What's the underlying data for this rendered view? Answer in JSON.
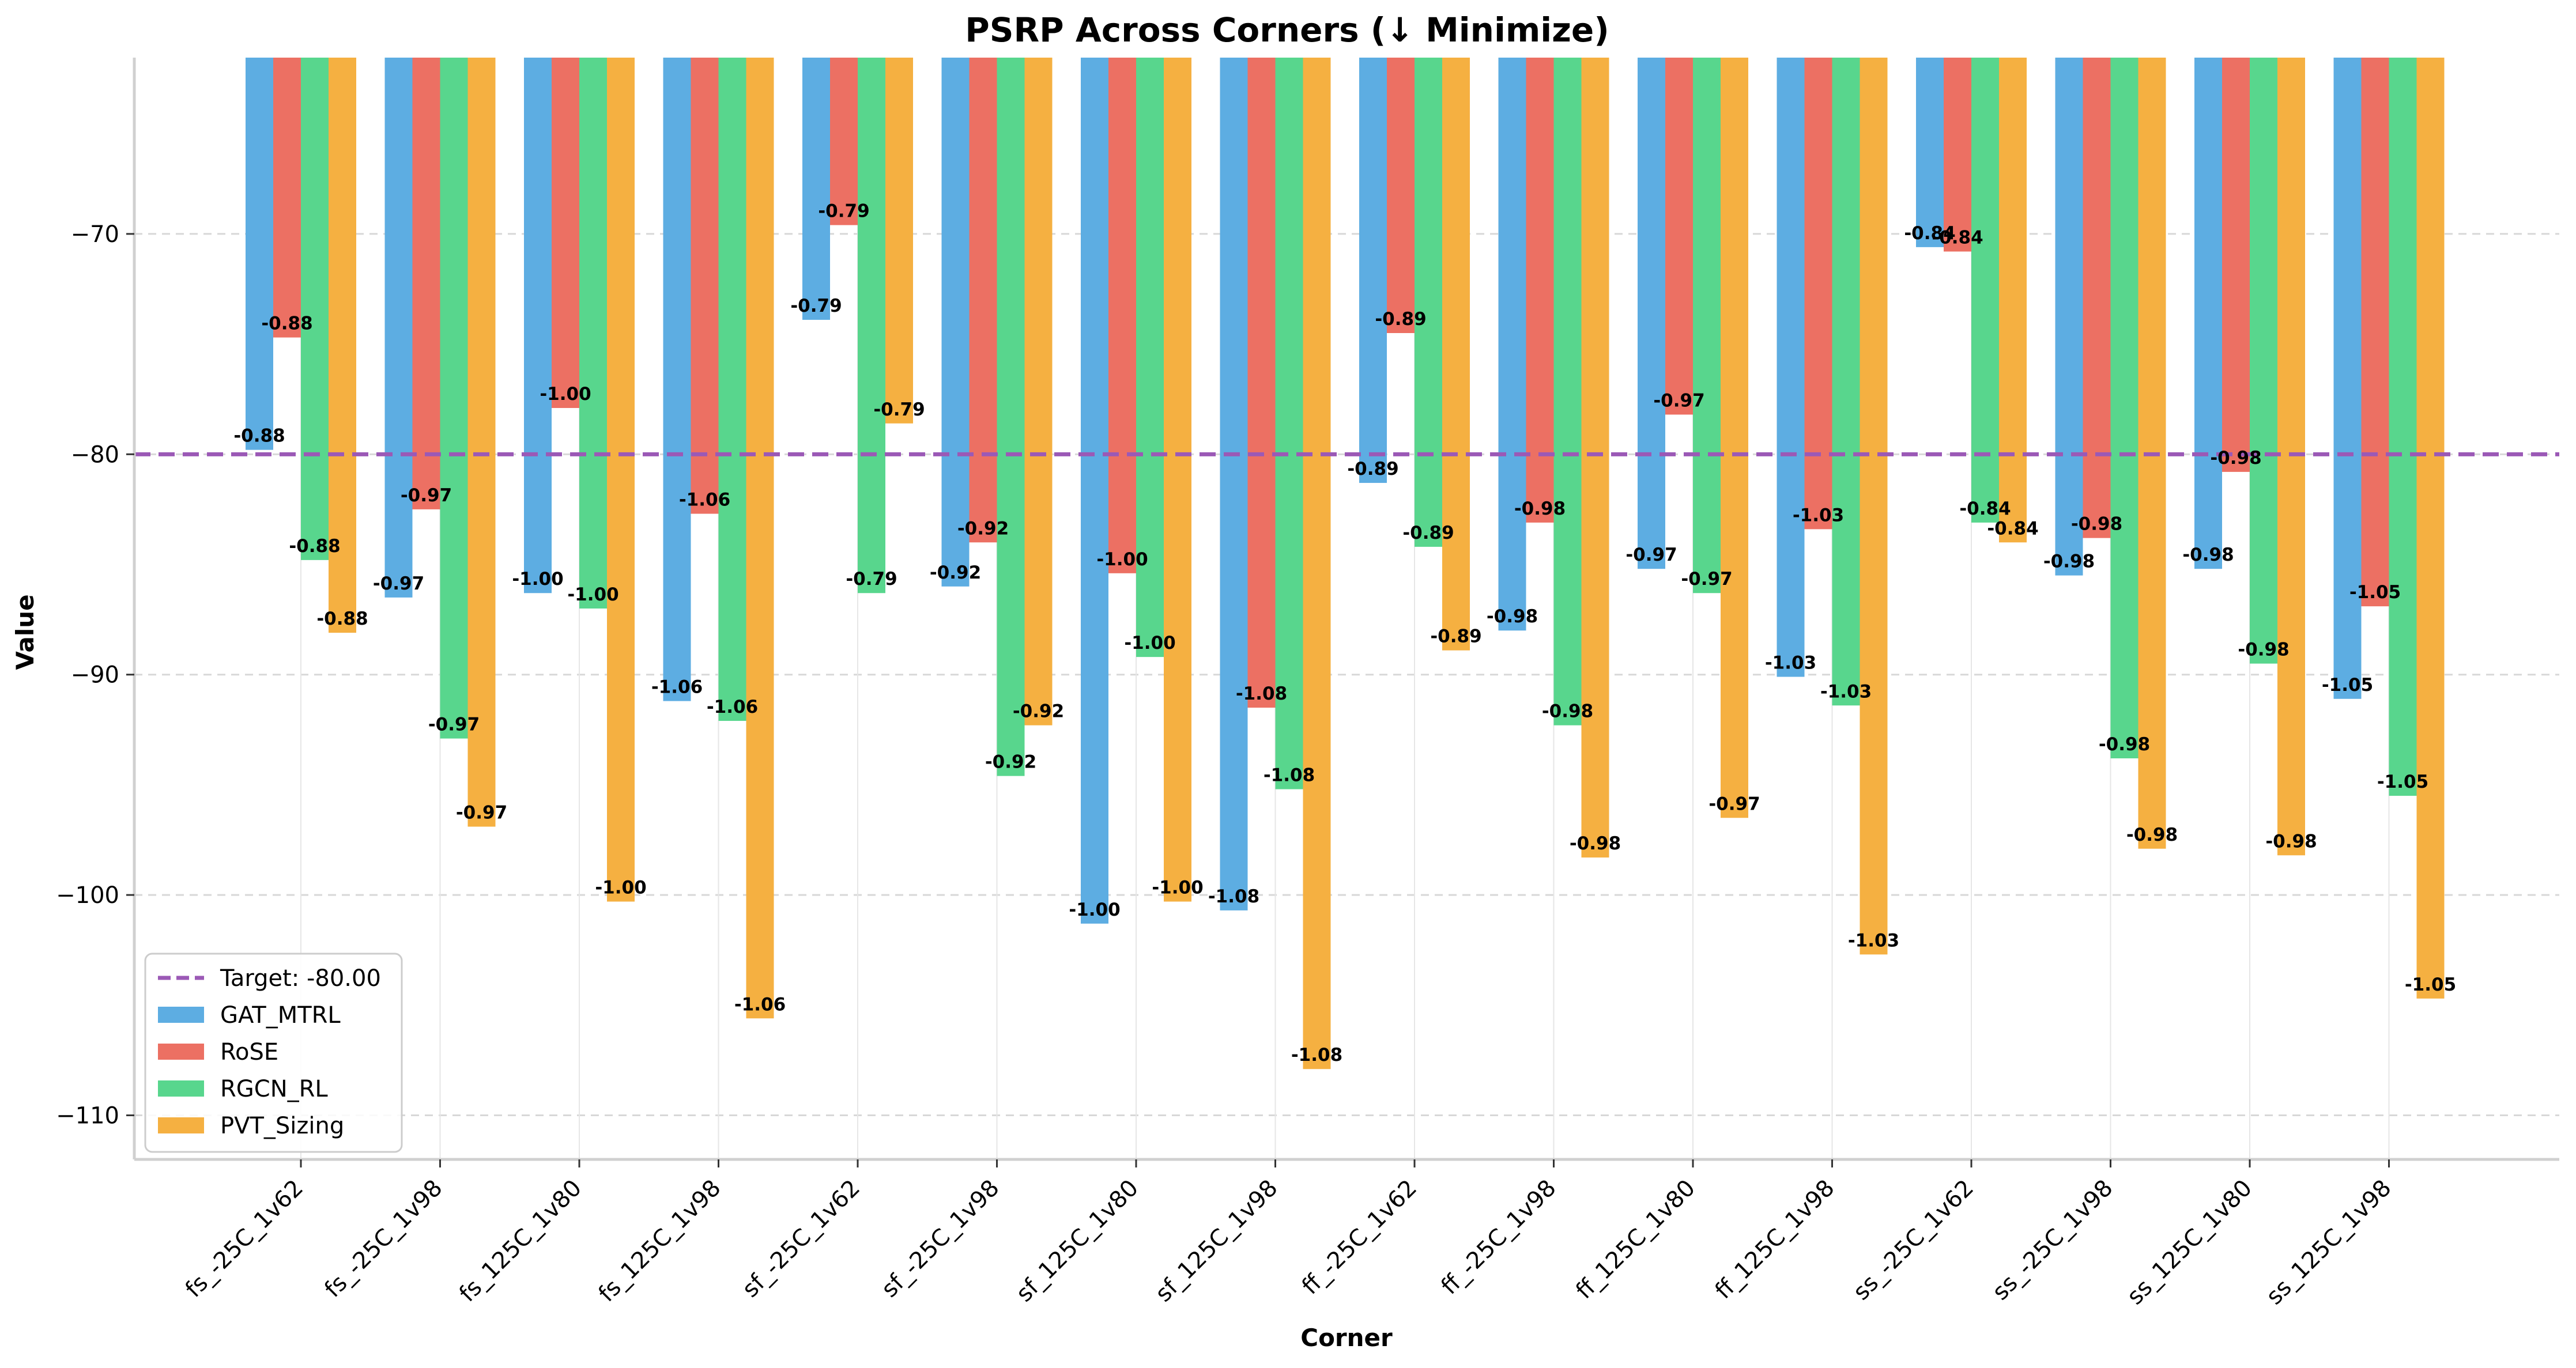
{
  "chart_data": {
    "type": "bar",
    "title": "PSRP Across Corners (↓ Minimize)",
    "xlabel": "Corner",
    "ylabel": "Value",
    "ylim": [
      -112,
      -62
    ],
    "yticks": [
      -110,
      -100,
      -90,
      -80,
      -70
    ],
    "grid": true,
    "legend_position": "lower-left",
    "categories": [
      "fs_-25C_1v62",
      "fs_-25C_1v98",
      "fs_125C_1v80",
      "fs_125C_1v98",
      "sf_-25C_1v62",
      "sf_-25C_1v98",
      "sf_125C_1v80",
      "sf_125C_1v98",
      "ff_-25C_1v62",
      "ff_-25C_1v98",
      "ff_125C_1v80",
      "ff_125C_1v98",
      "ss_-25C_1v62",
      "ss_-25C_1v98",
      "ss_125C_1v80",
      "ss_125C_1v98"
    ],
    "target": {
      "label": "Target: -80.00",
      "value": -80,
      "color": "#9b59b6"
    },
    "series": [
      {
        "name": "GAT_MTRL",
        "color": "#5dade2",
        "values": [
          -79.8,
          -86.5,
          -86.3,
          -91.2,
          -73.9,
          -86.0,
          -101.3,
          -100.7,
          -81.3,
          -88.0,
          -85.2,
          -90.1,
          -70.6,
          -85.5,
          -85.2,
          -91.1
        ],
        "labels": [
          "-0.88",
          "-0.97",
          "-1.00",
          "-1.06",
          "-0.79",
          "-0.92",
          "-1.00",
          "-1.08",
          "-0.89",
          "-0.98",
          "-0.97",
          "-1.03",
          "-0.84",
          "-0.98",
          "-0.98",
          "-1.05"
        ]
      },
      {
        "name": "RoSE",
        "color": "#ec7063",
        "values": [
          -74.7,
          -82.5,
          -77.9,
          -82.7,
          -69.6,
          -84.0,
          -85.4,
          -91.5,
          -74.5,
          -83.1,
          -78.2,
          -83.4,
          -70.8,
          -83.8,
          -80.8,
          -86.9
        ],
        "labels": [
          "-0.88",
          "-0.97",
          "-1.00",
          "-1.06",
          "-0.79",
          "-0.92",
          "-1.00",
          "-1.08",
          "-0.89",
          "-0.98",
          "-0.97",
          "-1.03",
          "-0.84",
          "-0.98",
          "-0.98",
          "-1.05"
        ]
      },
      {
        "name": "RGCN_RL",
        "color": "#58d68d",
        "values": [
          -84.8,
          -92.9,
          -87.0,
          -92.1,
          -86.3,
          -94.6,
          -89.2,
          -95.2,
          -84.2,
          -92.3,
          -86.3,
          -91.4,
          -83.1,
          -93.8,
          -89.5,
          -95.5
        ],
        "labels": [
          "-0.88",
          "-0.97",
          "-1.00",
          "-1.06",
          "-0.79",
          "-0.92",
          "-1.00",
          "-1.08",
          "-0.89",
          "-0.98",
          "-0.97",
          "-1.03",
          "-0.84",
          "-0.98",
          "-0.98",
          "-1.05"
        ]
      },
      {
        "name": "PVT_Sizing",
        "color": "#f5b041",
        "values": [
          -88.1,
          -96.9,
          -100.3,
          -105.6,
          -78.6,
          -92.3,
          -100.3,
          -107.9,
          -88.9,
          -98.3,
          -96.5,
          -102.7,
          -84.0,
          -97.9,
          -98.2,
          -104.7
        ],
        "labels": [
          "-0.88",
          "-0.97",
          "-1.00",
          "-1.06",
          "-0.79",
          "-0.92",
          "-1.00",
          "-1.08",
          "-0.89",
          "-0.98",
          "-0.97",
          "-1.03",
          "-0.84",
          "-0.98",
          "-0.98",
          "-1.05"
        ]
      }
    ]
  }
}
